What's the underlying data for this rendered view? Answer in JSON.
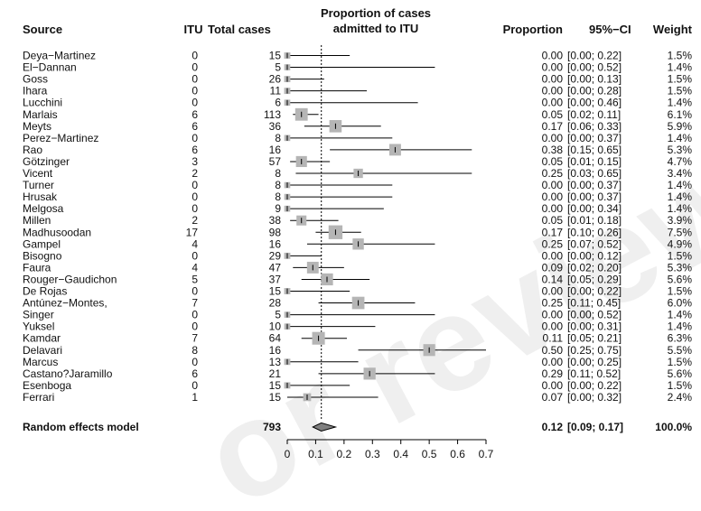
{
  "headers": {
    "source": "Source",
    "itu": "ITU",
    "total": "Total cases",
    "plot_line1": "Proportion of cases",
    "plot_line2": "admitted to ITU",
    "proportion": "Proportion",
    "ci": "95%−CI",
    "weight": "Weight"
  },
  "watermark": "or review",
  "chart_data": {
    "type": "forest",
    "xlim": [
      0,
      0.7
    ],
    "x_ticks": [
      "0",
      "0.1",
      "0.2",
      "0.3",
      "0.4",
      "0.5",
      "0.6",
      "0.7"
    ],
    "reference_line": 0.12,
    "grid": false,
    "studies": [
      {
        "source": "Deya−Martinez",
        "itu": "0",
        "total": "15",
        "proportion": 0.0,
        "ci_low": 0.0,
        "ci_high": 0.22,
        "proportion_text": "0.00",
        "ci_text": "[0.00; 0.22]",
        "weight": "1.5%",
        "weight_pct": 1.5
      },
      {
        "source": "El−Dannan",
        "itu": "0",
        "total": "5",
        "proportion": 0.0,
        "ci_low": 0.0,
        "ci_high": 0.52,
        "proportion_text": "0.00",
        "ci_text": "[0.00; 0.52]",
        "weight": "1.4%",
        "weight_pct": 1.4
      },
      {
        "source": "Goss",
        "itu": "0",
        "total": "26",
        "proportion": 0.0,
        "ci_low": 0.0,
        "ci_high": 0.13,
        "proportion_text": "0.00",
        "ci_text": "[0.00; 0.13]",
        "weight": "1.5%",
        "weight_pct": 1.5
      },
      {
        "source": "Ihara",
        "itu": "0",
        "total": "11",
        "proportion": 0.0,
        "ci_low": 0.0,
        "ci_high": 0.28,
        "proportion_text": "0.00",
        "ci_text": "[0.00; 0.28]",
        "weight": "1.5%",
        "weight_pct": 1.5
      },
      {
        "source": "Lucchini",
        "itu": "0",
        "total": "6",
        "proportion": 0.0,
        "ci_low": 0.0,
        "ci_high": 0.46,
        "proportion_text": "0.00",
        "ci_text": "[0.00; 0.46]",
        "weight": "1.4%",
        "weight_pct": 1.4
      },
      {
        "source": "Marlais",
        "itu": "6",
        "total": "113",
        "proportion": 0.05,
        "ci_low": 0.02,
        "ci_high": 0.11,
        "proportion_text": "0.05",
        "ci_text": "[0.02; 0.11]",
        "weight": "6.1%",
        "weight_pct": 6.1
      },
      {
        "source": "Meyts",
        "itu": "6",
        "total": "36",
        "proportion": 0.17,
        "ci_low": 0.06,
        "ci_high": 0.33,
        "proportion_text": "0.17",
        "ci_text": "[0.06; 0.33]",
        "weight": "5.9%",
        "weight_pct": 5.9
      },
      {
        "source": "Perez−Martinez",
        "itu": "0",
        "total": "8",
        "proportion": 0.0,
        "ci_low": 0.0,
        "ci_high": 0.37,
        "proportion_text": "0.00",
        "ci_text": "[0.00; 0.37]",
        "weight": "1.4%",
        "weight_pct": 1.4
      },
      {
        "source": "Rao",
        "itu": "6",
        "total": "16",
        "proportion": 0.38,
        "ci_low": 0.15,
        "ci_high": 0.65,
        "proportion_text": "0.38",
        "ci_text": "[0.15; 0.65]",
        "weight": "5.3%",
        "weight_pct": 5.3
      },
      {
        "source": "Götzinger",
        "itu": "3",
        "total": "57",
        "proportion": 0.05,
        "ci_low": 0.01,
        "ci_high": 0.15,
        "proportion_text": "0.05",
        "ci_text": "[0.01; 0.15]",
        "weight": "4.7%",
        "weight_pct": 4.7
      },
      {
        "source": "Vicent",
        "itu": "2",
        "total": "8",
        "proportion": 0.25,
        "ci_low": 0.03,
        "ci_high": 0.65,
        "proportion_text": "0.25",
        "ci_text": "[0.03; 0.65]",
        "weight": "3.4%",
        "weight_pct": 3.4
      },
      {
        "source": "Turner",
        "itu": "0",
        "total": "8",
        "proportion": 0.0,
        "ci_low": 0.0,
        "ci_high": 0.37,
        "proportion_text": "0.00",
        "ci_text": "[0.00; 0.37]",
        "weight": "1.4%",
        "weight_pct": 1.4
      },
      {
        "source": "Hrusak",
        "itu": "0",
        "total": "8",
        "proportion": 0.0,
        "ci_low": 0.0,
        "ci_high": 0.37,
        "proportion_text": "0.00",
        "ci_text": "[0.00; 0.37]",
        "weight": "1.4%",
        "weight_pct": 1.4
      },
      {
        "source": "Melgosa",
        "itu": "0",
        "total": "9",
        "proportion": 0.0,
        "ci_low": 0.0,
        "ci_high": 0.34,
        "proportion_text": "0.00",
        "ci_text": "[0.00; 0.34]",
        "weight": "1.4%",
        "weight_pct": 1.4
      },
      {
        "source": "Millen",
        "itu": "2",
        "total": "38",
        "proportion": 0.05,
        "ci_low": 0.01,
        "ci_high": 0.18,
        "proportion_text": "0.05",
        "ci_text": "[0.01; 0.18]",
        "weight": "3.9%",
        "weight_pct": 3.9
      },
      {
        "source": "Madhusoodan",
        "itu": "17",
        "total": "98",
        "proportion": 0.17,
        "ci_low": 0.1,
        "ci_high": 0.26,
        "proportion_text": "0.17",
        "ci_text": "[0.10; 0.26]",
        "weight": "7.5%",
        "weight_pct": 7.5
      },
      {
        "source": "Gampel",
        "itu": "4",
        "total": "16",
        "proportion": 0.25,
        "ci_low": 0.07,
        "ci_high": 0.52,
        "proportion_text": "0.25",
        "ci_text": "[0.07; 0.52]",
        "weight": "4.9%",
        "weight_pct": 4.9
      },
      {
        "source": "Bisogno",
        "itu": "0",
        "total": "29",
        "proportion": 0.0,
        "ci_low": 0.0,
        "ci_high": 0.12,
        "proportion_text": "0.00",
        "ci_text": "[0.00; 0.12]",
        "weight": "1.5%",
        "weight_pct": 1.5
      },
      {
        "source": "Faura",
        "itu": "4",
        "total": "47",
        "proportion": 0.09,
        "ci_low": 0.02,
        "ci_high": 0.2,
        "proportion_text": "0.09",
        "ci_text": "[0.02; 0.20]",
        "weight": "5.3%",
        "weight_pct": 5.3
      },
      {
        "source": "Rouger−Gaudichon",
        "itu": "5",
        "total": "37",
        "proportion": 0.14,
        "ci_low": 0.05,
        "ci_high": 0.29,
        "proportion_text": "0.14",
        "ci_text": "[0.05; 0.29]",
        "weight": "5.6%",
        "weight_pct": 5.6
      },
      {
        "source": "De Rojas",
        "itu": "0",
        "total": "15",
        "proportion": 0.0,
        "ci_low": 0.0,
        "ci_high": 0.22,
        "proportion_text": "0.00",
        "ci_text": "[0.00; 0.22]",
        "weight": "1.5%",
        "weight_pct": 1.5
      },
      {
        "source": "Antúnez−Montes,",
        "itu": "7",
        "total": "28",
        "proportion": 0.25,
        "ci_low": 0.11,
        "ci_high": 0.45,
        "proportion_text": "0.25",
        "ci_text": "[0.11; 0.45]",
        "weight": "6.0%",
        "weight_pct": 6.0
      },
      {
        "source": "Singer",
        "itu": "0",
        "total": "5",
        "proportion": 0.0,
        "ci_low": 0.0,
        "ci_high": 0.52,
        "proportion_text": "0.00",
        "ci_text": "[0.00; 0.52]",
        "weight": "1.4%",
        "weight_pct": 1.4
      },
      {
        "source": "Yuksel",
        "itu": "0",
        "total": "10",
        "proportion": 0.0,
        "ci_low": 0.0,
        "ci_high": 0.31,
        "proportion_text": "0.00",
        "ci_text": "[0.00; 0.31]",
        "weight": "1.4%",
        "weight_pct": 1.4
      },
      {
        "source": "Kamdar",
        "itu": "7",
        "total": "64",
        "proportion": 0.11,
        "ci_low": 0.05,
        "ci_high": 0.21,
        "proportion_text": "0.11",
        "ci_text": "[0.05; 0.21]",
        "weight": "6.3%",
        "weight_pct": 6.3
      },
      {
        "source": "Delavari",
        "itu": "8",
        "total": "16",
        "proportion": 0.5,
        "ci_low": 0.25,
        "ci_high": 0.75,
        "proportion_text": "0.50",
        "ci_text": "[0.25; 0.75]",
        "weight": "5.5%",
        "weight_pct": 5.5
      },
      {
        "source": "Marcus",
        "itu": "0",
        "total": "13",
        "proportion": 0.0,
        "ci_low": 0.0,
        "ci_high": 0.25,
        "proportion_text": "0.00",
        "ci_text": "[0.00; 0.25]",
        "weight": "1.5%",
        "weight_pct": 1.5
      },
      {
        "source": "Castano?Jaramillo",
        "itu": "6",
        "total": "21",
        "proportion": 0.29,
        "ci_low": 0.11,
        "ci_high": 0.52,
        "proportion_text": "0.29",
        "ci_text": "[0.11; 0.52]",
        "weight": "5.6%",
        "weight_pct": 5.6
      },
      {
        "source": "Esenboga",
        "itu": "0",
        "total": "15",
        "proportion": 0.0,
        "ci_low": 0.0,
        "ci_high": 0.22,
        "proportion_text": "0.00",
        "ci_text": "[0.00; 0.22]",
        "weight": "1.5%",
        "weight_pct": 1.5
      },
      {
        "source": "Ferrari",
        "itu": "1",
        "total": "15",
        "proportion": 0.07,
        "ci_low": 0.0,
        "ci_high": 0.32,
        "proportion_text": "0.07",
        "ci_text": "[0.00; 0.32]",
        "weight": "2.4%",
        "weight_pct": 2.4
      }
    ],
    "summary": {
      "label": "Random effects model",
      "total": "793",
      "proportion": 0.12,
      "ci_low": 0.09,
      "ci_high": 0.17,
      "proportion_text": "0.12",
      "ci_text": "[0.09; 0.17]",
      "weight": "100.0%"
    }
  }
}
